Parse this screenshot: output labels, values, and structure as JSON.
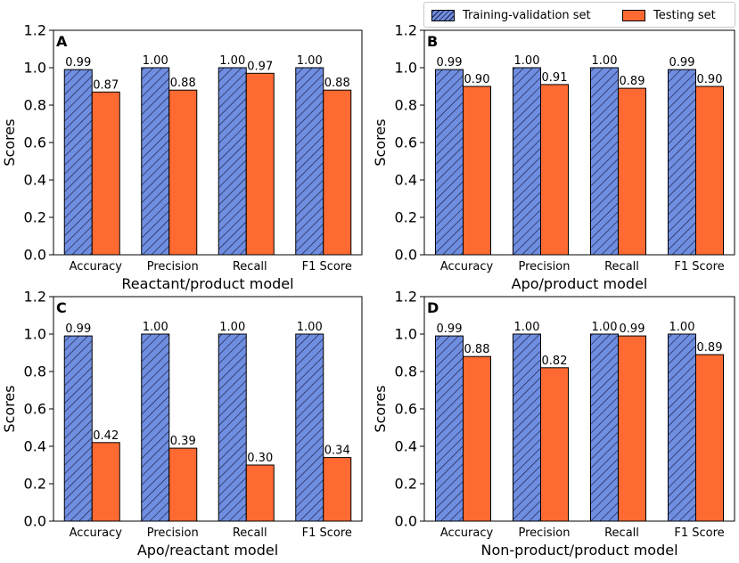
{
  "legend": {
    "train_label": "Training-validation set",
    "test_label": "Testing set"
  },
  "colors": {
    "train_fill": "#6f8ee0",
    "train_hatch": "#1a1a40",
    "test_fill": "#ff6a33"
  },
  "chart_data": [
    {
      "type": "bar",
      "panel_label": "A",
      "title": "",
      "xlabel": "Reactant/product model",
      "ylabel": "Scores",
      "ylim": [
        0,
        1.2
      ],
      "yticks": [
        "0.0",
        "0.2",
        "0.4",
        "0.6",
        "0.8",
        "1.0",
        "1.2"
      ],
      "categories": [
        "Accuracy",
        "Precision",
        "Recall",
        "F1 Score"
      ],
      "series": [
        {
          "name": "Training-validation set",
          "values": [
            0.99,
            1.0,
            1.0,
            1.0
          ],
          "labels": [
            "0.99",
            "1.00",
            "1.00",
            "1.00"
          ]
        },
        {
          "name": "Testing set",
          "values": [
            0.87,
            0.88,
            0.97,
            0.88
          ],
          "labels": [
            "0.87",
            "0.88",
            "0.97",
            "0.88"
          ]
        }
      ]
    },
    {
      "type": "bar",
      "panel_label": "B",
      "title": "",
      "xlabel": "Apo/product model",
      "ylabel": "Scores",
      "ylim": [
        0,
        1.2
      ],
      "yticks": [
        "0.0",
        "0.2",
        "0.4",
        "0.6",
        "0.8",
        "1.0",
        "1.2"
      ],
      "categories": [
        "Accuracy",
        "Precision",
        "Recall",
        "F1 Score"
      ],
      "series": [
        {
          "name": "Training-validation set",
          "values": [
            0.99,
            1.0,
            1.0,
            0.99
          ],
          "labels": [
            "0.99",
            "1.00",
            "1.00",
            "0.99"
          ]
        },
        {
          "name": "Testing set",
          "values": [
            0.9,
            0.91,
            0.89,
            0.9
          ],
          "labels": [
            "0.90",
            "0.91",
            "0.89",
            "0.90"
          ]
        }
      ]
    },
    {
      "type": "bar",
      "panel_label": "C",
      "title": "",
      "xlabel": "Apo/reactant model",
      "ylabel": "Scores",
      "ylim": [
        0,
        1.2
      ],
      "yticks": [
        "0.0",
        "0.2",
        "0.4",
        "0.6",
        "0.8",
        "1.0",
        "1.2"
      ],
      "categories": [
        "Accuracy",
        "Precision",
        "Recall",
        "F1 Score"
      ],
      "series": [
        {
          "name": "Training-validation set",
          "values": [
            0.99,
            1.0,
            1.0,
            1.0
          ],
          "labels": [
            "0.99",
            "1.00",
            "1.00",
            "1.00"
          ]
        },
        {
          "name": "Testing set",
          "values": [
            0.42,
            0.39,
            0.3,
            0.34
          ],
          "labels": [
            "0.42",
            "0.39",
            "0.30",
            "0.34"
          ]
        }
      ]
    },
    {
      "type": "bar",
      "panel_label": "D",
      "title": "",
      "xlabel": "Non-product/product model",
      "ylabel": "Scores",
      "ylim": [
        0,
        1.2
      ],
      "yticks": [
        "0.0",
        "0.2",
        "0.4",
        "0.6",
        "0.8",
        "1.0",
        "1.2"
      ],
      "categories": [
        "Accuracy",
        "Precision",
        "Recall",
        "F1 Score"
      ],
      "series": [
        {
          "name": "Training-validation set",
          "values": [
            0.99,
            1.0,
            1.0,
            1.0
          ],
          "labels": [
            "0.99",
            "1.00",
            "1.00",
            "1.00"
          ]
        },
        {
          "name": "Testing set",
          "values": [
            0.88,
            0.82,
            0.99,
            0.89
          ],
          "labels": [
            "0.88",
            "0.82",
            "0.99",
            "0.89"
          ]
        }
      ]
    }
  ]
}
